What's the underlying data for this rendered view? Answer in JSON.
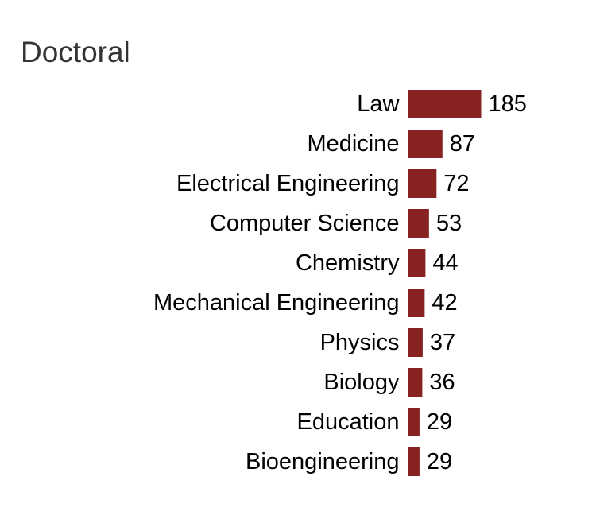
{
  "chart_data": {
    "type": "bar",
    "orientation": "horizontal",
    "title": "Doctoral",
    "categories": [
      "Law",
      "Medicine",
      "Electrical Engineering",
      "Computer Science",
      "Chemistry",
      "Mechanical Engineering",
      "Physics",
      "Biology",
      "Education",
      "Bioengineering"
    ],
    "values": [
      185,
      87,
      72,
      53,
      44,
      42,
      37,
      36,
      29,
      29
    ],
    "value_labels": true,
    "xlim": [
      0,
      185
    ],
    "bar_color": "#862320",
    "axis_color": "#bbbbbb",
    "grid": false,
    "legend": "none"
  }
}
